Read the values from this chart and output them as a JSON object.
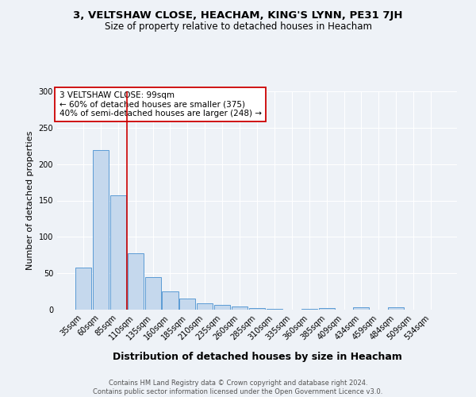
{
  "title": "3, VELTSHAW CLOSE, HEACHAM, KING'S LYNN, PE31 7JH",
  "subtitle": "Size of property relative to detached houses in Heacham",
  "xlabel": "Distribution of detached houses by size in Heacham",
  "ylabel": "Number of detached properties",
  "categories": [
    "35sqm",
    "60sqm",
    "85sqm",
    "110sqm",
    "135sqm",
    "160sqm",
    "185sqm",
    "210sqm",
    "235sqm",
    "260sqm",
    "285sqm",
    "310sqm",
    "335sqm",
    "360sqm",
    "385sqm",
    "409sqm",
    "434sqm",
    "459sqm",
    "484sqm",
    "509sqm",
    "534sqm"
  ],
  "values": [
    58,
    219,
    157,
    77,
    45,
    25,
    15,
    9,
    7,
    4,
    2,
    1,
    0,
    1,
    2,
    0,
    3,
    0,
    3,
    0,
    0
  ],
  "bar_color": "#c5d8ed",
  "bar_edgecolor": "#5b9bd5",
  "vline_x": 2.5,
  "vline_color": "#cc0000",
  "annotation_text": "3 VELTSHAW CLOSE: 99sqm\n← 60% of detached houses are smaller (375)\n40% of semi-detached houses are larger (248) →",
  "annotation_box_color": "white",
  "annotation_box_edgecolor": "#cc0000",
  "ylim": [
    0,
    300
  ],
  "yticks": [
    0,
    50,
    100,
    150,
    200,
    250,
    300
  ],
  "footer": "Contains HM Land Registry data © Crown copyright and database right 2024.\nContains public sector information licensed under the Open Government Licence v3.0.",
  "bg_color": "#eef2f7",
  "grid_color": "white",
  "title_fontsize": 9.5,
  "subtitle_fontsize": 8.5,
  "axis_label_fontsize": 8,
  "tick_fontsize": 7,
  "footer_fontsize": 6,
  "annotation_fontsize": 7.5
}
